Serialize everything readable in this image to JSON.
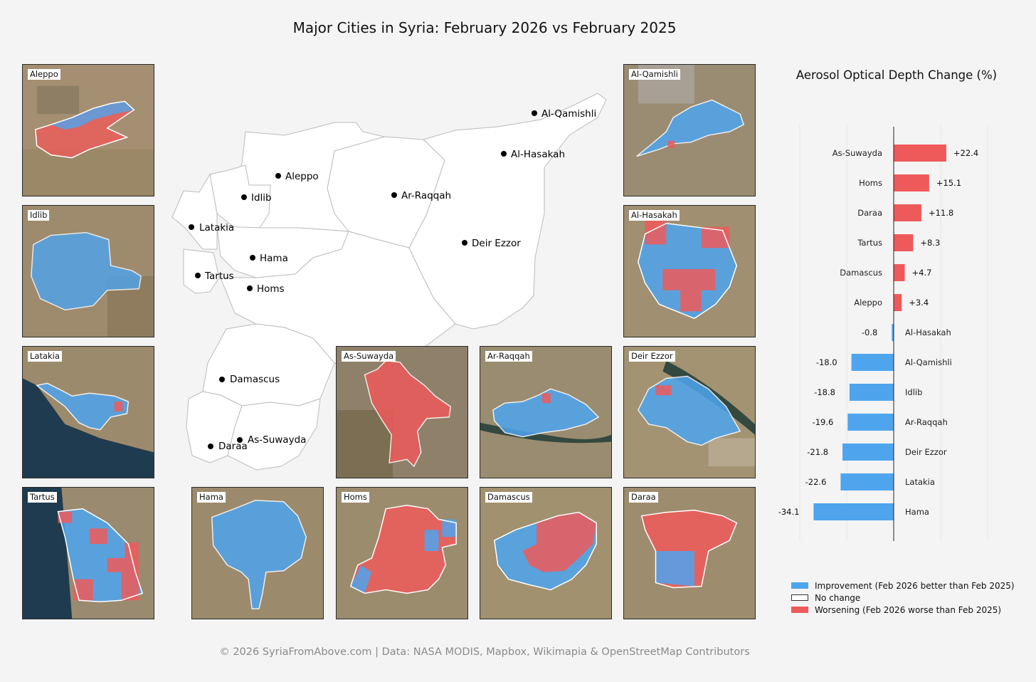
{
  "title": "Major Cities in Syria: February 2026 vs February 2025",
  "footer": "© 2026 SyriaFromAbove.com | Data: NASA MODIS, Mapbox, Wikimapia & OpenStreetMap Contributors",
  "colors": {
    "improvement": "#4ea5ee",
    "worsening": "#ee5a5a",
    "background": "#f4f4f4",
    "map_fill": "#ffffff",
    "map_border": "#bbbbbb"
  },
  "map": {
    "cities": [
      "Al-Qamishli",
      "Al-Hasakah",
      "Aleppo",
      "Idlib",
      "Ar-Raqqah",
      "Latakia",
      "Deir Ezzor",
      "Hama",
      "Tartus",
      "Homs",
      "Damascus",
      "As-Suwayda",
      "Daraa"
    ]
  },
  "panels": [
    {
      "label": "Aleppo",
      "change": "worsening"
    },
    {
      "label": "Idlib",
      "change": "improvement"
    },
    {
      "label": "Latakia",
      "change": "improvement"
    },
    {
      "label": "Tartus",
      "change": "mixed"
    },
    {
      "label": "Hama",
      "change": "improvement"
    },
    {
      "label": "As-Suwayda",
      "change": "worsening"
    },
    {
      "label": "Homs",
      "change": "worsening"
    },
    {
      "label": "Ar-Raqqah",
      "change": "improvement"
    },
    {
      "label": "Damascus",
      "change": "mixed"
    },
    {
      "label": "Al-Qamishli",
      "change": "improvement"
    },
    {
      "label": "Al-Hasakah",
      "change": "mixed"
    },
    {
      "label": "Deir Ezzor",
      "change": "improvement"
    },
    {
      "label": "Daraa",
      "change": "worsening"
    }
  ],
  "chart_title": "Aerosol Optical Depth Change (%)",
  "chart_data": {
    "type": "bar",
    "orientation": "horizontal",
    "title": "Aerosol Optical Depth Change (%)",
    "categories": [
      "As-Suwayda",
      "Homs",
      "Daraa",
      "Tartus",
      "Damascus",
      "Aleppo",
      "Al-Hasakah",
      "Al-Qamishli",
      "Idlib",
      "Ar-Raqqah",
      "Deir Ezzor",
      "Latakia",
      "Hama"
    ],
    "values": [
      22.4,
      15.1,
      11.8,
      8.3,
      4.7,
      3.4,
      -0.8,
      -18.0,
      -18.8,
      -19.6,
      -21.8,
      -22.6,
      -34.1
    ],
    "value_labels": [
      "+22.4",
      "+15.1",
      "+11.8",
      "+8.3",
      "+4.7",
      "+3.4",
      "-0.8",
      "-18.0",
      "-18.8",
      "-19.6",
      "-21.8",
      "-22.6",
      "-34.1"
    ],
    "xlim": [
      -40,
      40
    ],
    "grid": true
  },
  "legend": [
    {
      "label": "Improvement (Feb 2026 better than Feb 2025)",
      "color": "#4ea5ee"
    },
    {
      "label": "No change",
      "color": "#ffffff"
    },
    {
      "label": "Worsening (Feb 2026 worse than Feb 2025)",
      "color": "#ee5a5a"
    }
  ]
}
